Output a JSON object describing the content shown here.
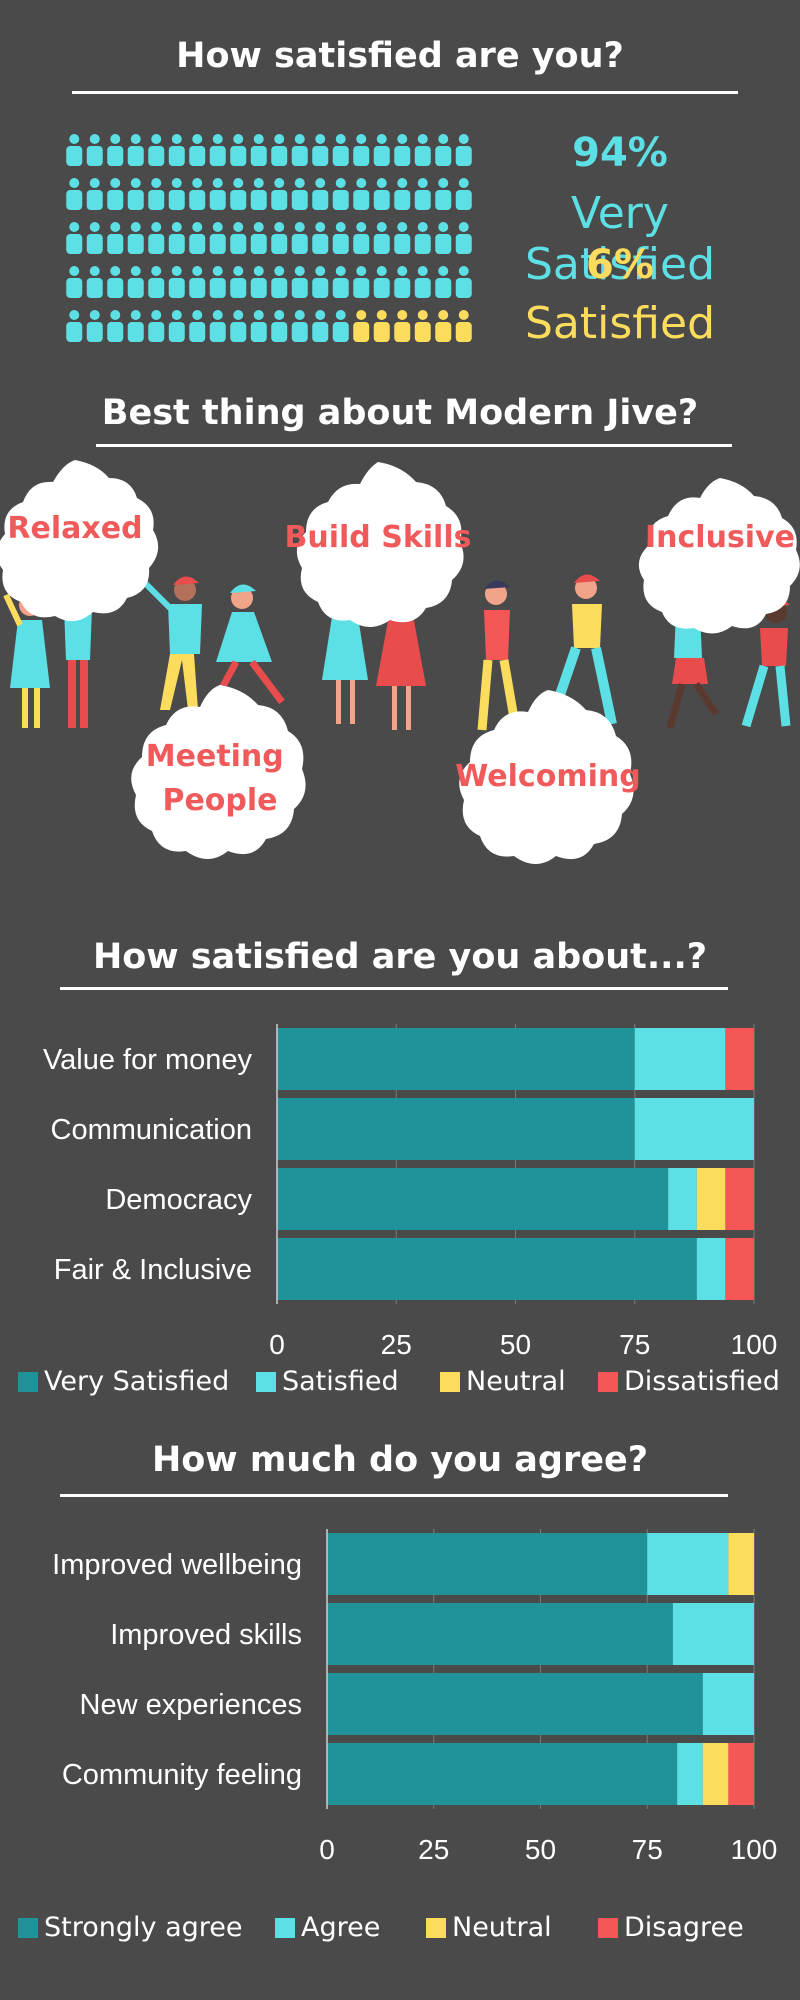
{
  "satisfaction": {
    "heading": "How satisfied are you?",
    "very_satisfied_pct": "94%",
    "very_satisfied_label": "Very Satisfied",
    "satisfied_pct": "6%",
    "satisfied_label": "Satisfied",
    "icon_counts": {
      "very_satisfied": 94,
      "satisfied": 6
    },
    "colors": {
      "very_satisfied": "#5ce0e5",
      "satisfied": "#fcdc5c"
    }
  },
  "best_thing": {
    "heading": "Best thing about Modern Jive?",
    "labels": [
      "Relaxed",
      "Build Skills",
      "Inclusive",
      "Meeting People",
      "Welcoming"
    ]
  },
  "chart_data": [
    {
      "type": "bar",
      "orientation": "horizontal",
      "stacked": true,
      "title": "How satisfied are you about...?",
      "categories": [
        "Value for money",
        "Communication",
        "Democracy",
        "Fair & Inclusive"
      ],
      "series": [
        {
          "name": "Very Satisfied",
          "color": "#1f9399",
          "values": [
            75,
            75,
            82,
            88
          ]
        },
        {
          "name": "Satisfied",
          "color": "#5ce0e5",
          "values": [
            19,
            25,
            6,
            6
          ]
        },
        {
          "name": "Neutral",
          "color": "#fcdc5c",
          "values": [
            0,
            0,
            6,
            0
          ]
        },
        {
          "name": "Dissatisfied",
          "color": "#f55656",
          "values": [
            6,
            0,
            6,
            6
          ]
        }
      ],
      "xlim": [
        0,
        100
      ],
      "xticks": [
        "0",
        "25",
        "50",
        "75",
        "100"
      ],
      "grid": true,
      "legend": "bottom"
    },
    {
      "type": "bar",
      "orientation": "horizontal",
      "stacked": true,
      "title": "How much do you agree?",
      "categories": [
        "Improved wellbeing",
        "Improved skills",
        "New experiences",
        "Community feeling"
      ],
      "series": [
        {
          "name": "Strongly agree",
          "color": "#1f9399",
          "values": [
            75,
            81,
            88,
            82
          ]
        },
        {
          "name": "Agree",
          "color": "#5ce0e5",
          "values": [
            19,
            19,
            12,
            6
          ]
        },
        {
          "name": "Neutral",
          "color": "#fcdc5c",
          "values": [
            6,
            0,
            0,
            6
          ]
        },
        {
          "name": "Disagree",
          "color": "#f55656",
          "values": [
            0,
            0,
            0,
            6
          ]
        }
      ],
      "xlim": [
        0,
        100
      ],
      "xticks": [
        "0",
        "25",
        "50",
        "75",
        "100"
      ],
      "grid": true,
      "legend": "bottom"
    }
  ]
}
